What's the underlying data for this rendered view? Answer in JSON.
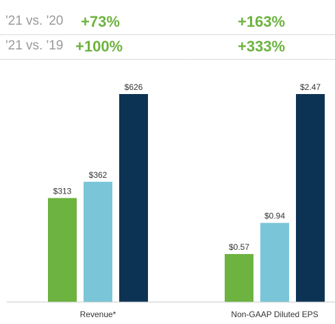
{
  "comparisons": [
    {
      "label": "'21 vs. '20",
      "revenue": "+73%",
      "eps": "+163%"
    },
    {
      "label": "'21 vs. '19",
      "revenue": "+100%",
      "eps": "+333%"
    }
  ],
  "colors": {
    "green": "#6cb33f",
    "light_blue": "#7ac6d8",
    "navy": "#0d3354",
    "comparison_label": "#9a9a9a",
    "comparison_value": "#6cb33f"
  },
  "chart_data": [
    {
      "type": "bar",
      "category": "Revenue*",
      "values": [
        313,
        362,
        626
      ],
      "labels": [
        "$313",
        "$362",
        "$626"
      ],
      "colors": [
        "#6cb33f",
        "#7ac6d8",
        "#0d3354"
      ],
      "ylim": [
        0,
        626
      ]
    },
    {
      "type": "bar",
      "category": "Non-GAAP Diluted EPS",
      "values": [
        0.57,
        0.94,
        2.47
      ],
      "labels": [
        "$0.57",
        "$0.94",
        "$2.47"
      ],
      "colors": [
        "#6cb33f",
        "#7ac6d8",
        "#0d3354"
      ],
      "ylim": [
        0,
        2.47
      ]
    }
  ]
}
